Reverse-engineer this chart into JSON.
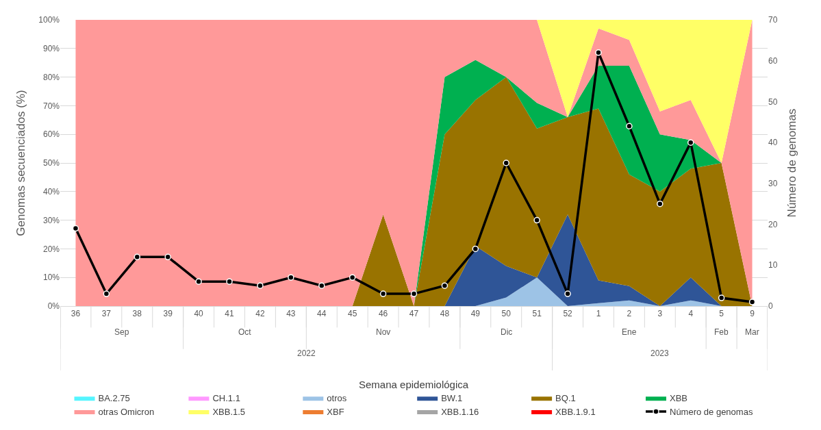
{
  "chart_data": {
    "type": "area",
    "stacked": true,
    "ylabel": "Genomas secuenciados (%)",
    "y2label": "Número de genomas",
    "categories": [
      "36",
      "37",
      "38",
      "39",
      "40",
      "41",
      "42",
      "43",
      "44",
      "45",
      "46",
      "47",
      "48",
      "49",
      "50",
      "51",
      "52",
      "1",
      "2",
      "3",
      "4",
      "5",
      "9"
    ],
    "ylim": [
      0,
      100
    ],
    "yticks": [
      {
        "value": 0,
        "label": "0%"
      },
      {
        "value": 10,
        "label": "10%"
      },
      {
        "value": 20,
        "label": "20%"
      },
      {
        "value": 30,
        "label": "30%"
      },
      {
        "value": 40,
        "label": "40%"
      },
      {
        "value": 50,
        "label": "50%"
      },
      {
        "value": 60,
        "label": "60%"
      },
      {
        "value": 70,
        "label": "70%"
      },
      {
        "value": 80,
        "label": "80%"
      },
      {
        "value": 90,
        "label": "90%"
      },
      {
        "value": 100,
        "label": "100%"
      }
    ],
    "y2lim": [
      0,
      70
    ],
    "y2ticks": [
      0,
      10,
      20,
      30,
      40,
      50,
      60,
      70
    ],
    "grid": "y",
    "legend": "bottom",
    "annotations": [
      "Sep",
      "Oct",
      "Nov",
      "Dic",
      "Ene",
      "Feb",
      "Mar",
      "2022",
      "2023",
      "Semana epidemiológica"
    ],
    "series": [
      {
        "name": "BA.2.75",
        "color": "#55f5ff",
        "values": [
          null,
          null,
          null,
          null,
          null,
          null,
          null,
          null,
          null,
          null,
          null,
          null,
          null,
          null,
          null,
          null,
          null,
          null,
          null,
          null,
          null,
          null,
          null
        ]
      },
      {
        "name": "CH.1.1",
        "color": "#ff99ff",
        "values": [
          null,
          null,
          null,
          null,
          null,
          null,
          null,
          null,
          null,
          null,
          null,
          null,
          null,
          null,
          null,
          null,
          null,
          null,
          null,
          null,
          null,
          null,
          null
        ]
      },
      {
        "name": "otros",
        "color": "#9dc3e6",
        "values": [
          0,
          0,
          0,
          0,
          0,
          0,
          0,
          0,
          0,
          0,
          0,
          0,
          0,
          0,
          3,
          10,
          0,
          1,
          2,
          0,
          2,
          0,
          0
        ]
      },
      {
        "name": "BW.1",
        "color": "#2f5597",
        "values": [
          0,
          0,
          0,
          0,
          0,
          0,
          0,
          0,
          0,
          0,
          0,
          0,
          0,
          21,
          11,
          0,
          32,
          8,
          5,
          0,
          8,
          0,
          0
        ]
      },
      {
        "name": "BQ.1",
        "color": "#997300",
        "values": [
          0,
          0,
          0,
          0,
          0,
          0,
          0,
          0,
          0,
          0,
          32,
          0,
          60,
          51,
          66,
          52,
          34,
          60,
          39,
          40,
          38,
          50,
          0
        ]
      },
      {
        "name": "XBB",
        "color": "#00b050",
        "values": [
          0,
          0,
          0,
          0,
          0,
          0,
          0,
          0,
          0,
          0,
          0,
          0,
          20,
          14,
          0,
          9,
          0,
          15,
          38,
          20,
          10,
          0,
          0
        ]
      },
      {
        "name": "otras Omicron",
        "color": "#ff9999",
        "values": [
          100,
          100,
          100,
          100,
          100,
          100,
          100,
          100,
          100,
          100,
          68,
          100,
          20,
          14,
          20,
          29,
          0,
          13,
          9,
          8,
          14,
          0,
          100
        ]
      },
      {
        "name": "XBB.1.5",
        "color": "#ffff66",
        "values": [
          0,
          0,
          0,
          0,
          0,
          0,
          0,
          0,
          0,
          0,
          0,
          0,
          0,
          0,
          0,
          0,
          34,
          3,
          7,
          32,
          28,
          50,
          0
        ]
      },
      {
        "name": "XBF",
        "color": "#ed7d31",
        "values": [
          null,
          null,
          null,
          null,
          null,
          null,
          null,
          null,
          null,
          null,
          null,
          null,
          null,
          null,
          null,
          null,
          null,
          null,
          null,
          null,
          null,
          null,
          null
        ]
      },
      {
        "name": "XBB.1.16",
        "color": "#a5a5a5",
        "values": [
          null,
          null,
          null,
          null,
          null,
          null,
          null,
          null,
          null,
          null,
          null,
          null,
          null,
          null,
          null,
          null,
          null,
          null,
          null,
          null,
          null,
          null,
          null
        ]
      },
      {
        "name": "XBB.1.9.1",
        "color": "#ff0000",
        "values": [
          null,
          null,
          null,
          null,
          null,
          null,
          null,
          null,
          null,
          null,
          null,
          null,
          null,
          null,
          null,
          null,
          null,
          null,
          null,
          null,
          null,
          null,
          null
        ]
      },
      {
        "name": "Número de genomas",
        "color": "#000000",
        "type": "line",
        "axis": "y2",
        "marker": "circle",
        "values": [
          19,
          3,
          12,
          12,
          6,
          6,
          5,
          7,
          5,
          7,
          3,
          3,
          5,
          14,
          35,
          21,
          3,
          62,
          44,
          25,
          40,
          2,
          1
        ]
      }
    ]
  }
}
